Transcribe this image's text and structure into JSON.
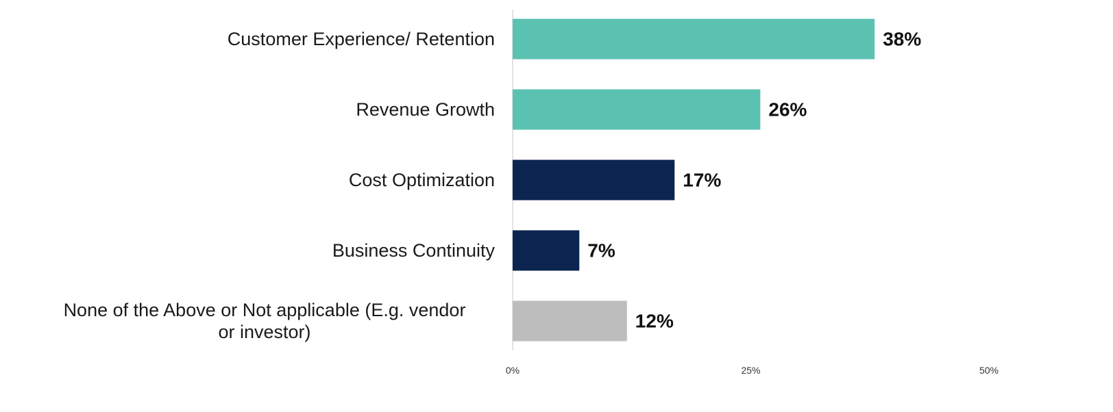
{
  "chart_data": {
    "type": "bar",
    "orientation": "horizontal",
    "title": "",
    "xlabel": "",
    "ylabel": "",
    "xlim": [
      0,
      50
    ],
    "grid": false,
    "legend": "none",
    "categories": [
      "Customer Experience/ Retention",
      "Revenue Growth",
      "Cost Optimization",
      "Business Continuity",
      "None of the Above or Not applicable (E.g. vendor or investor)"
    ],
    "category_lines": [
      [
        "Customer Experience/ Retention"
      ],
      [
        "Revenue Growth"
      ],
      [
        "Cost Optimization"
      ],
      [
        "Business Continuity"
      ],
      [
        "None of the Above or Not applicable (E.g. vendor",
        "or investor)"
      ]
    ],
    "values": [
      38,
      26,
      17,
      7,
      12
    ],
    "value_labels": [
      "38%",
      "26%",
      "17%",
      "7%",
      "12%"
    ],
    "bar_colors": [
      "#5bc2b1",
      "#5bc2b1",
      "#0b2550",
      "#0b2550",
      "#bdbdbd"
    ],
    "x_ticks": [
      0,
      25,
      50
    ],
    "x_tick_labels": [
      "0%",
      "25%",
      "50%"
    ],
    "axis_color": "#e3e3e3"
  }
}
